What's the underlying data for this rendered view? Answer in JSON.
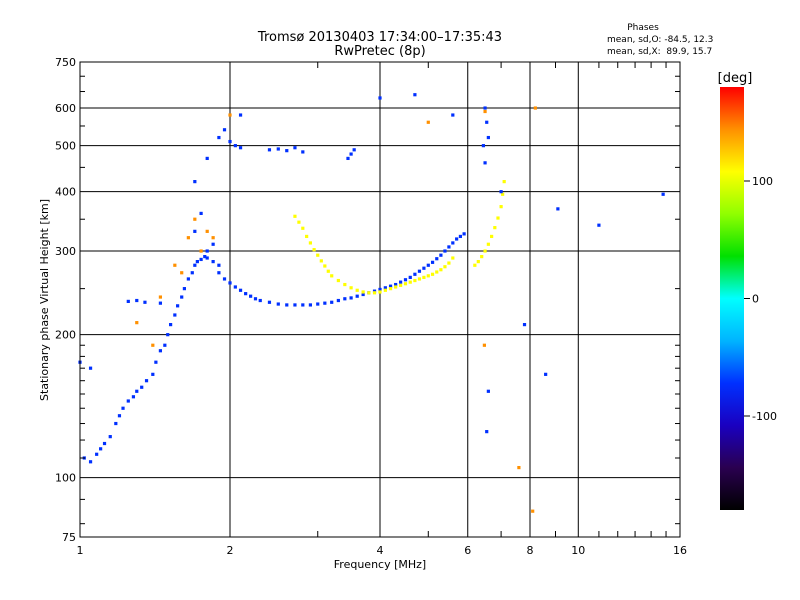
{
  "chart_data": {
    "type": "scatter",
    "title": "Tromsø 20130403 17:34:00–17:35:43",
    "subtitle": "RwPretec (8p)",
    "xlabel": "Frequency [MHz]",
    "ylabel": "Stationary phase Virtual Height [km]",
    "x_scale": "log",
    "y_scale": "log",
    "xlim": [
      1,
      16
    ],
    "ylim": [
      75,
      750
    ],
    "x_ticks": [
      1,
      2,
      4,
      6,
      8,
      10,
      16
    ],
    "y_ticks": [
      75,
      100,
      200,
      300,
      400,
      500,
      600,
      750
    ],
    "grid": true,
    "stats": {
      "heading": "Phases",
      "o_line": "mean, sd,O: -84.5, 12.3",
      "x_line": "mean, sd,X:  89.9, 15.7"
    },
    "colorbar": {
      "label": "[deg]",
      "range": [
        -180,
        180
      ],
      "ticks": [
        100,
        0,
        -100
      ],
      "palette": [
        "#000000",
        "#2a0050",
        "#1a00c0",
        "#0030ff",
        "#00b4ff",
        "#00ffff",
        "#00e000",
        "#90ff00",
        "#ffff00",
        "#ff9000",
        "#ff0000"
      ]
    },
    "series": [
      {
        "phase": -90,
        "x": [
          1.02,
          1.05,
          1.08,
          1.1,
          1.12,
          1.15,
          1.18,
          1.2,
          1.22,
          1.25,
          1.28,
          1.3,
          1.33,
          1.36,
          1.4,
          1.42,
          1.45,
          1.48,
          1.5,
          1.52,
          1.55,
          1.57,
          1.6,
          1.62,
          1.65,
          1.68,
          1.7,
          1.72,
          1.75,
          1.78,
          1.8,
          1.85,
          1.9,
          1.95,
          2.0,
          2.05,
          2.1,
          2.15,
          2.2,
          2.25,
          2.3,
          2.4,
          2.5,
          2.6,
          2.7,
          2.8,
          2.9,
          3.0,
          3.1,
          3.2,
          3.3,
          3.4,
          3.5,
          3.6,
          3.7,
          3.8,
          3.9,
          4.0,
          4.1,
          4.2,
          4.3,
          4.4,
          4.5,
          4.6,
          4.7,
          4.8,
          4.9,
          5.0,
          5.1,
          5.2,
          5.3,
          5.4,
          5.5,
          5.6,
          5.7,
          5.8,
          5.9,
          1.25,
          1.3,
          1.35,
          1.45,
          1.7,
          1.8,
          1.9,
          1.95,
          2.0,
          2.05,
          2.1,
          2.4,
          2.5,
          2.6,
          2.7,
          2.8,
          3.45,
          3.5,
          3.55,
          6.5,
          6.55,
          6.6,
          6.45,
          6.5,
          1.0,
          1.05,
          1.7,
          1.75,
          1.8,
          1.85,
          1.9
        ],
        "y": [
          110,
          108,
          112,
          115,
          118,
          122,
          130,
          135,
          140,
          145,
          148,
          152,
          155,
          160,
          165,
          175,
          185,
          190,
          200,
          210,
          220,
          230,
          240,
          250,
          262,
          270,
          280,
          285,
          288,
          292,
          290,
          285,
          270,
          262,
          257,
          252,
          248,
          244,
          241,
          238,
          236,
          234,
          232,
          231,
          231,
          231,
          231,
          232,
          233,
          234,
          236,
          238,
          239,
          241,
          243,
          245,
          247,
          249,
          251,
          253,
          255,
          258,
          261,
          264,
          268,
          272,
          276,
          280,
          284,
          289,
          294,
          300,
          306,
          312,
          318,
          322,
          326,
          235,
          236,
          234,
          233,
          420,
          470,
          520,
          540,
          510,
          500,
          495,
          490,
          492,
          488,
          495,
          485,
          470,
          480,
          490,
          600,
          560,
          520,
          500,
          460,
          175,
          170,
          330,
          360,
          300,
          310,
          280
        ]
      },
      {
        "phase": 95,
        "x": [
          2.7,
          2.75,
          2.8,
          2.85,
          2.9,
          2.95,
          3.0,
          3.05,
          3.1,
          3.15,
          3.2,
          3.3,
          3.4,
          3.5,
          3.6,
          3.7,
          3.8,
          3.9,
          4.0,
          4.1,
          4.2,
          4.3,
          4.4,
          4.5,
          4.6,
          4.7,
          4.8,
          4.9,
          5.0,
          5.1,
          5.2,
          5.3,
          5.4,
          5.5,
          5.6,
          6.2,
          6.3,
          6.4,
          6.5,
          6.6,
          6.7,
          6.8,
          6.9,
          7.0,
          7.05,
          7.1
        ],
        "y": [
          355,
          345,
          335,
          322,
          312,
          302,
          294,
          286,
          279,
          272,
          266,
          260,
          255,
          251,
          248,
          246,
          245,
          245,
          246,
          248,
          250,
          252,
          254,
          256,
          258,
          260,
          262,
          264,
          266,
          268,
          271,
          274,
          278,
          283,
          290,
          280,
          285,
          292,
          300,
          310,
          322,
          336,
          352,
          372,
          395,
          420
        ]
      },
      {
        "phase": 140,
        "x": [
          1.45,
          1.55,
          1.65,
          1.75,
          1.8,
          1.85,
          1.6,
          1.7,
          2.0,
          5.0,
          6.5,
          7.6,
          8.1,
          8.2,
          6.48,
          1.3,
          1.4
        ],
        "y": [
          240,
          280,
          320,
          300,
          330,
          320,
          270,
          350,
          580,
          560,
          590,
          105,
          85,
          600,
          190,
          212,
          190
        ]
      },
      {
        "phase": -60,
        "x": [
          4.7,
          4.0,
          9.1,
          6.6,
          6.55,
          7.8,
          8.6,
          14.8,
          2.1,
          5.6,
          11.0,
          7.0
        ],
        "y": [
          640,
          630,
          368,
          152,
          125,
          210,
          165,
          395,
          580,
          580,
          340,
          400
        ]
      }
    ]
  }
}
